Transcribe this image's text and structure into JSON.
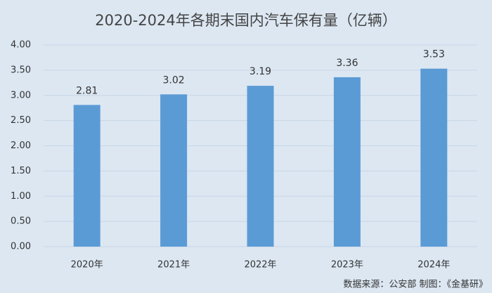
{
  "chart_data": {
    "type": "bar",
    "title": "2020-2024年各期末国内汽车保有量（亿辆）",
    "categories": [
      "2020年",
      "2021年",
      "2022年",
      "2023年",
      "2024年"
    ],
    "values": [
      2.81,
      3.02,
      3.19,
      3.36,
      3.53
    ],
    "color": "#5b9bd5",
    "ylim": [
      0,
      4
    ],
    "yticks": [
      {
        "value": 0,
        "label": "0.00"
      },
      {
        "value": 0.5,
        "label": "0.50"
      },
      {
        "value": 1,
        "label": "1.00"
      },
      {
        "value": 1.5,
        "label": "1.50"
      },
      {
        "value": 2,
        "label": "2.00"
      },
      {
        "value": 2.5,
        "label": "2.50"
      },
      {
        "value": 3,
        "label": "3.00"
      },
      {
        "value": 3.5,
        "label": "3.50"
      },
      {
        "value": 4,
        "label": "4.00"
      }
    ],
    "grid": true,
    "source": "数据来源：公安部   制图：《金基研》"
  }
}
